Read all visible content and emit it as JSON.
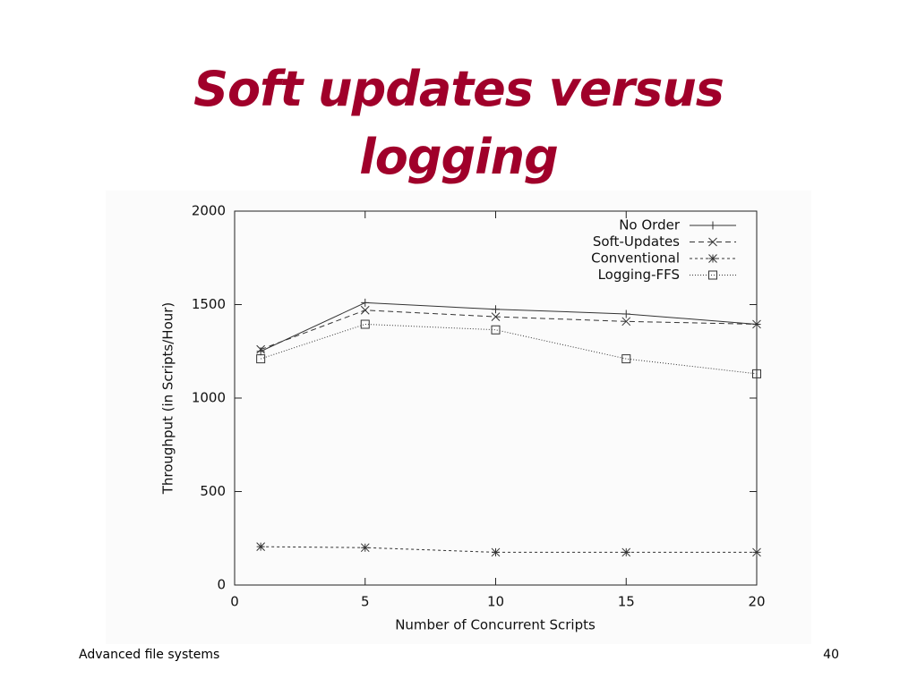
{
  "slide": {
    "title": "Soft updates versus logging",
    "footer": "Advanced file systems",
    "page_number": "40"
  },
  "chart_data": {
    "type": "line",
    "x_label": "Number of Concurrent Scripts",
    "y_label": "Throughput (in Scripts/Hour)",
    "x": [
      1,
      5,
      10,
      15,
      20
    ],
    "xlim": [
      0,
      20
    ],
    "xticks": [
      0,
      5,
      10,
      15,
      20
    ],
    "ylim": [
      0,
      2000
    ],
    "yticks": [
      0,
      500,
      1000,
      1500,
      2000
    ],
    "legend": "top-right",
    "series": [
      {
        "name": "No Order",
        "color": "#333333",
        "dash": "solid",
        "marker": "plus",
        "values": [
          1250,
          1510,
          1475,
          1450,
          1395
        ]
      },
      {
        "name": "Soft-Updates",
        "color": "#333333",
        "dash": "dashed",
        "marker": "cross",
        "values": [
          1260,
          1470,
          1435,
          1410,
          1395
        ]
      },
      {
        "name": "Conventional",
        "color": "#333333",
        "dash": "dash-dot",
        "marker": "star",
        "values": [
          205,
          200,
          175,
          175,
          175
        ]
      },
      {
        "name": "Logging-FFS",
        "color": "#333333",
        "dash": "dotted",
        "marker": "square",
        "values": [
          1210,
          1395,
          1365,
          1210,
          1130
        ]
      }
    ]
  }
}
